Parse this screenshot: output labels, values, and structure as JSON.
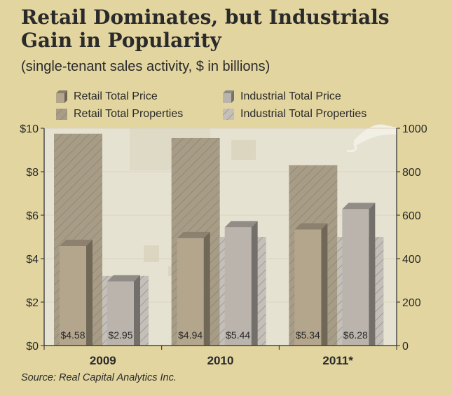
{
  "title": "Retail Dominates, but Industrials Gain in Popularity",
  "subtitle": "(single-tenant sales activity, $ in billions)",
  "source": "Source: Real Capital Analytics Inc.",
  "colors": {
    "background": "#e2d5a0",
    "plot_area": "#e6e2d2",
    "retail_price": "#b4a68d",
    "industrial_price": "#bab4ac",
    "retail_properties": "#a79c86",
    "industrial_properties": "#c4bfb8"
  },
  "chart_data": {
    "type": "bar",
    "title": "Retail Dominates, but Industrials Gain in Popularity",
    "subtitle": "(single-tenant sales activity, $ in billions)",
    "categories": [
      "2009",
      "2010",
      "2011*"
    ],
    "legend": [
      "Retail Total Price",
      "Industrial Total Price",
      "Retail Total Properties",
      "Industrial Total Properties"
    ],
    "legend_placement": "top",
    "y_left": {
      "range": [
        0,
        10
      ],
      "ticks": [
        "$0",
        "$2",
        "$4",
        "$6",
        "$8",
        "$10"
      ]
    },
    "y_right": {
      "range": [
        0,
        1000
      ],
      "ticks": [
        "0",
        "200",
        "400",
        "600",
        "800",
        "1000"
      ]
    },
    "series": [
      {
        "name": "Retail Total Properties",
        "axis": "right",
        "values": [
          975,
          955,
          830
        ]
      },
      {
        "name": "Industrial Total Properties",
        "axis": "right",
        "values": [
          320,
          500,
          500
        ]
      },
      {
        "name": "Retail Total Price",
        "axis": "left",
        "values": [
          4.58,
          4.94,
          5.34
        ],
        "labels": [
          "$4.58",
          "$4.94",
          "$5.34"
        ]
      },
      {
        "name": "Industrial Total Price",
        "axis": "left",
        "values": [
          2.95,
          5.44,
          6.28
        ],
        "labels": [
          "$2.95",
          "$5.44",
          "$6.28"
        ]
      }
    ]
  }
}
